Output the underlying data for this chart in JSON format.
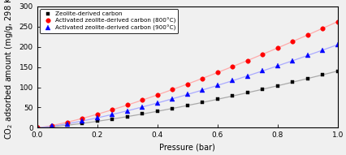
{
  "title": "",
  "xlabel": "Pressure (bar)",
  "ylabel": "CO$_2$ adsorbed amount (mg/g, 298 K)",
  "xlim": [
    0.0,
    1.0
  ],
  "ylim": [
    0,
    300
  ],
  "yticks": [
    0,
    50,
    100,
    150,
    200,
    250,
    300
  ],
  "xticks": [
    0.0,
    0.2,
    0.4,
    0.6,
    0.8,
    1.0
  ],
  "series": [
    {
      "label": "Zeolite-derived carbon",
      "color": "black",
      "linecolor": "#aaaaaa",
      "marker": "s",
      "markersize": 3.5,
      "scale": 140.0,
      "exponent": 1.35
    },
    {
      "label": "Activated zeolite-derived carbon (800°C)",
      "color": "red",
      "linecolor": "#ffaaaa",
      "marker": "o",
      "markersize": 4.0,
      "scale": 262.0,
      "exponent": 1.28
    },
    {
      "label": "Activated zeolite-derived carbon (900°C)",
      "color": "blue",
      "linecolor": "#aaaaff",
      "marker": "^",
      "markersize": 4.0,
      "scale": 205.0,
      "exponent": 1.32
    }
  ],
  "background_color": "#f0f0f0",
  "legend_fontsize": 5.2,
  "axis_fontsize": 7,
  "tick_fontsize": 6.5,
  "n_markers": 20
}
